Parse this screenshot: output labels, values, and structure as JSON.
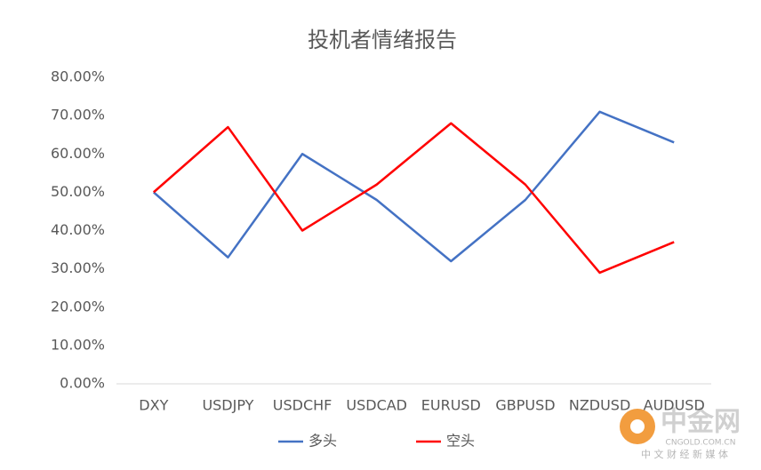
{
  "chart_data": {
    "type": "line",
    "title": "投机者情绪报告",
    "categories": [
      "DXY",
      "USDJPY",
      "USDCHF",
      "USDCAD",
      "EURUSD",
      "GBPUSD",
      "NZDUSD",
      "AUDUSD"
    ],
    "series": [
      {
        "name": "多头",
        "color": "#4472c4",
        "values": [
          50,
          33,
          60,
          48,
          32,
          48,
          71,
          63
        ]
      },
      {
        "name": "空头",
        "color": "#ff0000",
        "values": [
          50,
          67,
          40,
          52,
          68,
          52,
          29,
          37
        ]
      }
    ],
    "ylim": [
      0,
      80
    ],
    "yticks": [
      {
        "value": 0,
        "label": "0.00%"
      },
      {
        "value": 10,
        "label": "10.00%"
      },
      {
        "value": 20,
        "label": "20.00%"
      },
      {
        "value": 30,
        "label": "30.00%"
      },
      {
        "value": 40,
        "label": "40.00%"
      },
      {
        "value": 50,
        "label": "50.00%"
      },
      {
        "value": 60,
        "label": "60.00%"
      },
      {
        "value": 70,
        "label": "70.00%"
      },
      {
        "value": 80,
        "label": "80.00%"
      }
    ],
    "grid": false,
    "legend": "bottom",
    "watermark": {
      "brand": "中金网",
      "site": "CNGOLD.COM.CN",
      "slogan": "中 文 财 经 新 媒 体"
    }
  }
}
